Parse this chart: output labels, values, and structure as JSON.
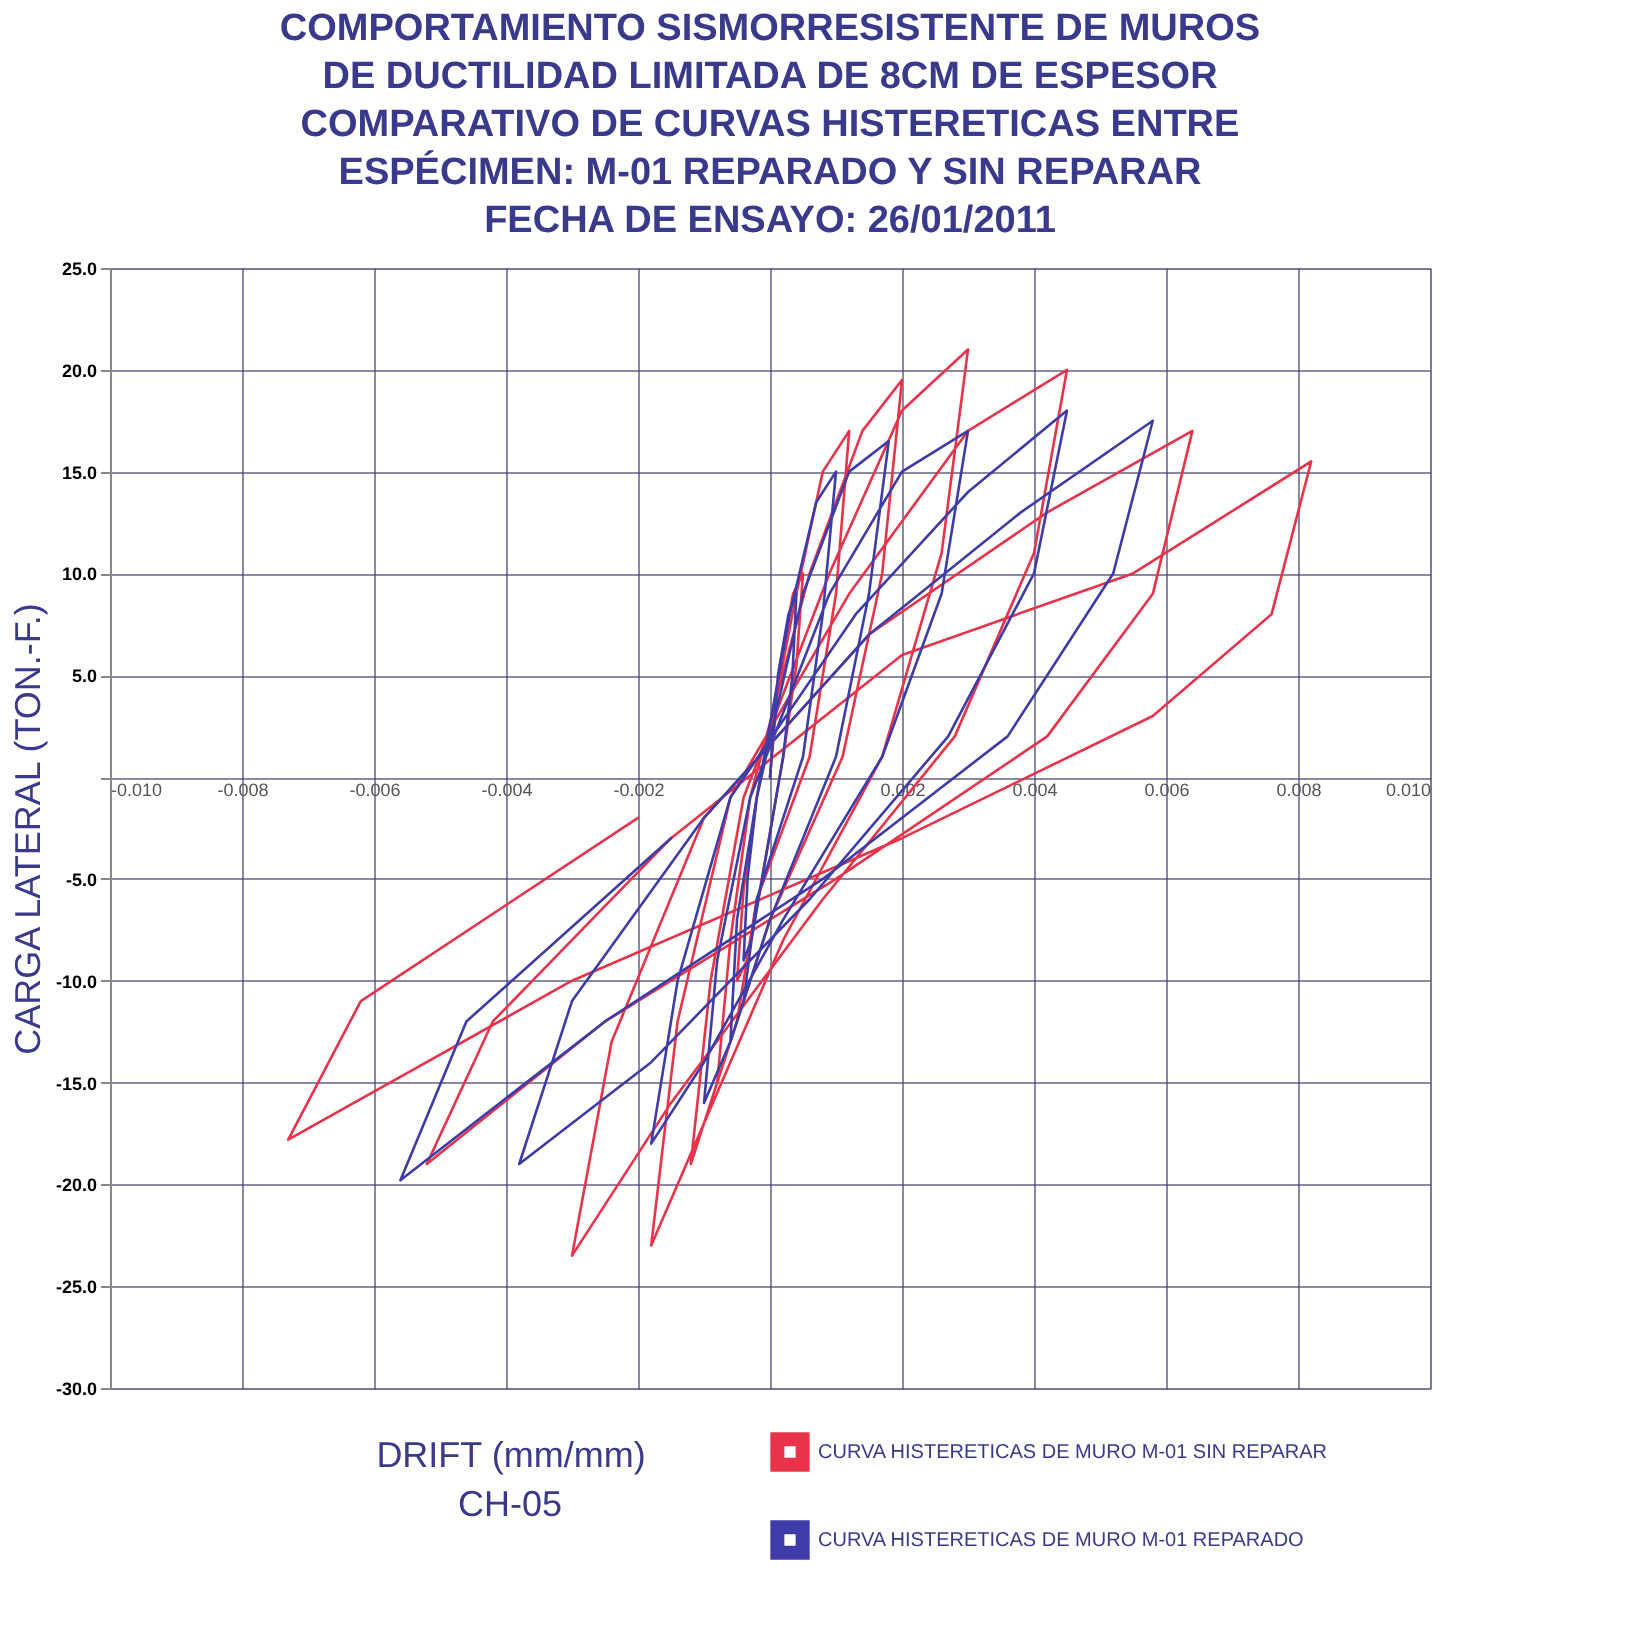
{
  "chart_data": {
    "type": "line",
    "title": "COMPORTAMIENTO SISMORRESISTENTE DE MUROS\nDE DUCTILIDAD LIMITADA DE 8CM DE ESPESOR\nCOMPARATIVO DE CURVAS HISTERETICAS ENTRE\nESPÉCIMEN: M-01 REPARADO Y SIN REPARAR\nFECHA DE ENSAYO: 26/01/2011",
    "xlabel": "DRIFT (mm/mm)",
    "ylabel": "CARGA LATERAL (TON.-F.)",
    "annotations": [
      "CH-05"
    ],
    "xlim": [
      -0.01,
      0.01
    ],
    "xticks": [
      {
        "value": -0.01,
        "label": "-0.010"
      },
      {
        "value": -0.008,
        "label": "-0.008"
      },
      {
        "value": -0.006,
        "label": "-0.006"
      },
      {
        "value": -0.004,
        "label": "-0.004"
      },
      {
        "value": -0.002,
        "label": "-0.002"
      },
      {
        "value": 0,
        "label": null
      },
      {
        "value": 0.002,
        "label": "0.002"
      },
      {
        "value": 0.004,
        "label": "0.004"
      },
      {
        "value": 0.006,
        "label": "0.006"
      },
      {
        "value": 0.008,
        "label": "0.008"
      },
      {
        "value": 0.01,
        "label": "0.010"
      }
    ],
    "ylim": [
      -30,
      25
    ],
    "yticks": [
      {
        "value": 25,
        "label": "25.0"
      },
      {
        "value": 20,
        "label": "20.0"
      },
      {
        "value": 15,
        "label": "15.0"
      },
      {
        "value": 10,
        "label": "10.0"
      },
      {
        "value": 5,
        "label": "5.0"
      },
      {
        "value": 0,
        "label": null
      },
      {
        "value": -5,
        "label": "-5.0"
      },
      {
        "value": -10,
        "label": "-10.0"
      },
      {
        "value": -15,
        "label": "-15.0"
      },
      {
        "value": -20,
        "label": "-20.0"
      },
      {
        "value": -25,
        "label": "-25.0"
      },
      {
        "value": -30,
        "label": "-30.0"
      }
    ],
    "grid": true,
    "legend": "bottom right",
    "marker": "none",
    "line_style": "solid",
    "series": [
      {
        "name": "CURVA HISTERETICAS DE MURO M-01 SIN REPARAR",
        "color": "#e8334a",
        "x": [
          0,
          0.00015,
          0.00035,
          0.0005,
          0.0004,
          0.0002,
          -0.00015,
          -0.00035,
          -0.0005,
          -0.0004,
          -0.0002,
          0.0004,
          0.0008,
          0.0012,
          0.001,
          0.0006,
          -0.0002,
          -0.0005,
          -0.0008,
          -0.0006,
          -0.0003,
          0.0006,
          0.0014,
          0.002,
          0.0017,
          0.0011,
          0,
          -0.0007,
          -0.0012,
          -0.0009,
          -0.0004,
          0.0009,
          0.002,
          0.003,
          0.0026,
          0.0017,
          0.0002,
          -0.001,
          -0.0018,
          -0.0014,
          -0.0006,
          0.0012,
          0.003,
          0.0045,
          0.004,
          0.0028,
          0.0008,
          -0.0015,
          -0.003,
          -0.0024,
          -0.001,
          0.0015,
          0.0042,
          0.0064,
          0.0058,
          0.0042,
          0.001,
          -0.0025,
          -0.0052,
          -0.0042,
          -0.0015,
          0.002,
          0.0055,
          0.0082,
          0.0076,
          0.0058,
          0.002,
          -0.003,
          -0.0073,
          -0.0062,
          -0.002
        ],
        "values": [
          0,
          5.5,
          9,
          10,
          5.5,
          1,
          -5.5,
          -9,
          -10,
          -5.5,
          -1,
          9,
          15,
          17,
          9,
          1,
          -6,
          -12,
          -15,
          -8,
          -1,
          10,
          17,
          19.5,
          10,
          1,
          -7,
          -14,
          -19,
          -10,
          -1,
          10,
          18,
          21,
          11,
          1,
          -8,
          -17,
          -23,
          -12,
          -1,
          9,
          17,
          20,
          11,
          2,
          -6,
          -16,
          -23.5,
          -13,
          -2,
          7,
          13,
          17,
          9,
          2,
          -5,
          -12,
          -19,
          -12,
          -3,
          6,
          10,
          15.5,
          8,
          3,
          -3,
          -10,
          -17.8,
          -11,
          -2
        ]
      },
      {
        "name": "CURVA HISTERETICAS DE MURO M-01 REPARADO",
        "color": "#3d3ca8",
        "x": [
          0,
          0.00012,
          0.00028,
          0.0004,
          0.00034,
          0.0002,
          -0.00012,
          -0.00028,
          -0.0004,
          -0.00034,
          -0.0002,
          0.0003,
          0.0007,
          0.001,
          0.0008,
          0.0005,
          -0.0002,
          -0.0004,
          -0.0006,
          -0.0005,
          -0.0002,
          0.0005,
          0.0012,
          0.0018,
          0.0015,
          0.001,
          0,
          -0.0006,
          -0.001,
          -0.0008,
          -0.0003,
          0.0009,
          0.002,
          0.003,
          0.0026,
          0.0017,
          0.0002,
          -0.001,
          -0.0018,
          -0.0014,
          -0.0006,
          0.0013,
          0.003,
          0.0045,
          0.004,
          0.0027,
          0.0006,
          -0.0018,
          -0.0038,
          -0.003,
          -0.001,
          0.0015,
          0.0038,
          0.0058,
          0.0052,
          0.0036,
          0.0008,
          -0.0025,
          -0.0056,
          -0.0046,
          -0.0015
        ],
        "values": [
          0,
          5,
          8,
          9,
          5,
          1,
          -5,
          -8,
          -9,
          -5,
          -1,
          8,
          13.5,
          15,
          8,
          1,
          -6,
          -11,
          -13,
          -7,
          -1,
          9,
          15,
          16.5,
          9,
          1,
          -7,
          -13,
          -16,
          -9,
          -1,
          9,
          15,
          17,
          9,
          1,
          -7,
          -14,
          -18,
          -10,
          -1,
          8,
          14,
          18,
          10,
          2,
          -6,
          -14,
          -19,
          -11,
          -2,
          7,
          13,
          17.5,
          10,
          2,
          -5,
          -12,
          -19.8,
          -12,
          -3
        ]
      }
    ]
  }
}
